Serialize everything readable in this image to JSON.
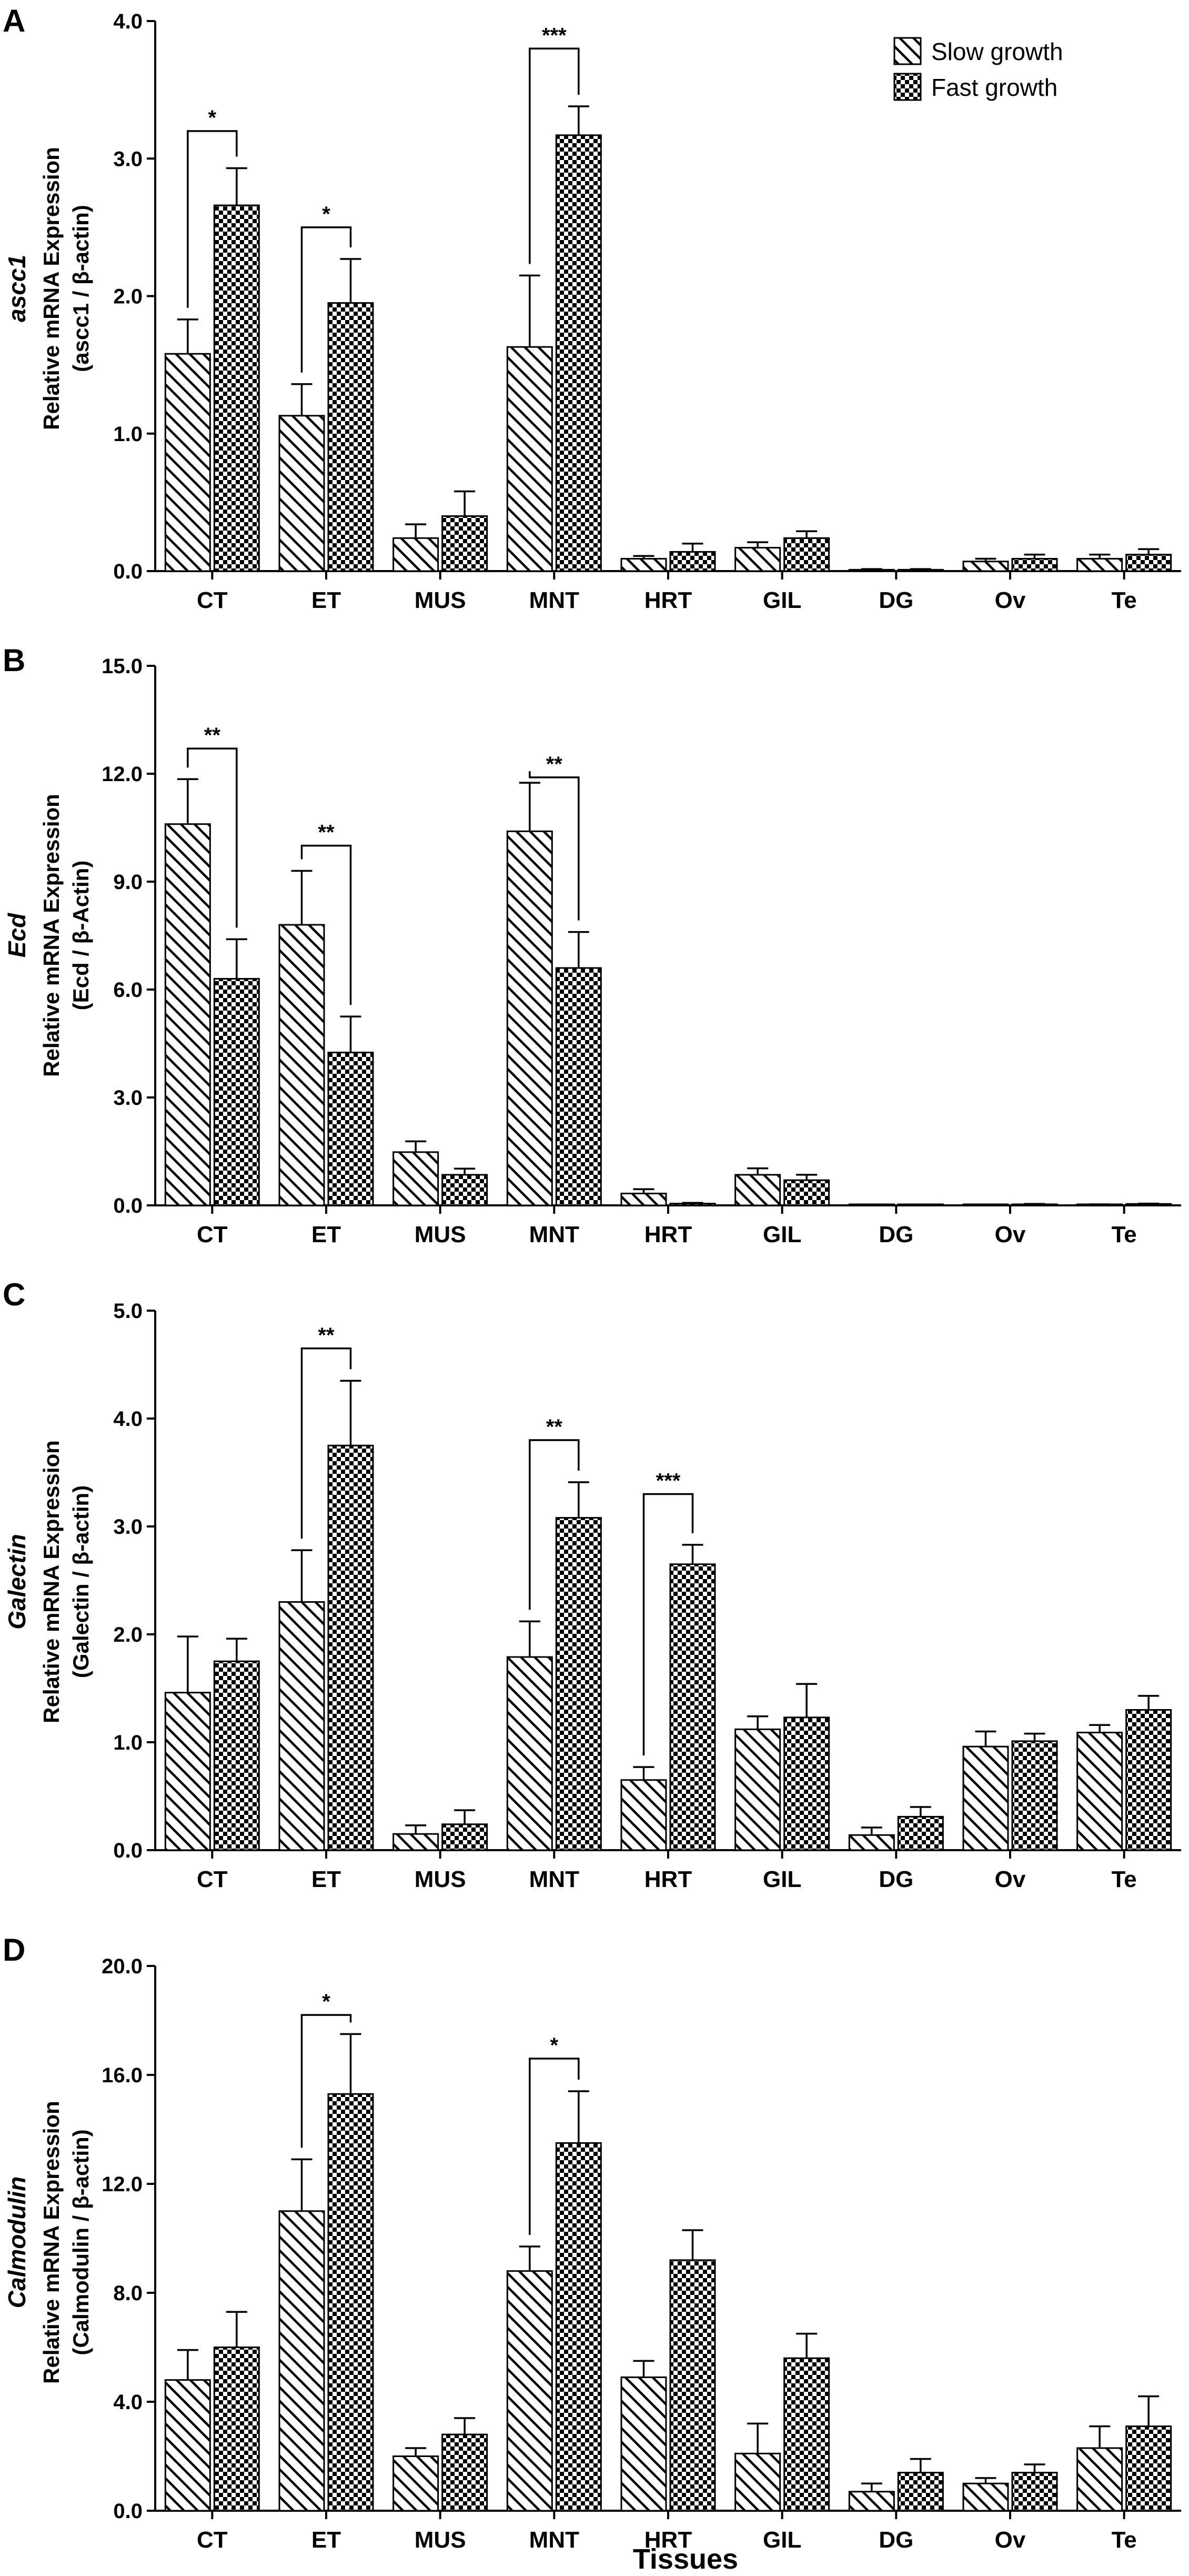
{
  "xlabel": "Tissues",
  "legend": [
    {
      "name": "Slow growth",
      "pattern": "hatch"
    },
    {
      "name": "Fast growth",
      "pattern": "check"
    }
  ],
  "colors": {
    "ink": "#000000",
    "background": "#ffffff"
  },
  "chart_data": [
    {
      "type": "bar",
      "panel": "A",
      "gene": "ascc1",
      "ylabel_line1": "Relative mRNA Expression",
      "ylabel_line2": "(ascc1 / β-actin)",
      "ylim": [
        0,
        4.0
      ],
      "yticks": [
        "0.0",
        "1.0",
        "2.0",
        "3.0",
        "4.0"
      ],
      "categories": [
        "CT",
        "ET",
        "MUS",
        "MNT",
        "HRT",
        "GIL",
        "DG",
        "Ov",
        "Te"
      ],
      "series": [
        {
          "name": "Slow growth",
          "values": [
            1.58,
            1.13,
            0.24,
            1.63,
            0.09,
            0.17,
            0.01,
            0.07,
            0.09
          ],
          "errors": [
            0.25,
            0.23,
            0.1,
            0.52,
            0.02,
            0.04,
            0.005,
            0.02,
            0.03
          ]
        },
        {
          "name": "Fast growth",
          "values": [
            2.66,
            1.95,
            0.4,
            3.17,
            0.14,
            0.24,
            0.01,
            0.09,
            0.12
          ],
          "errors": [
            0.27,
            0.32,
            0.18,
            0.21,
            0.06,
            0.05,
            0.005,
            0.03,
            0.04
          ]
        }
      ],
      "significance": [
        {
          "category": "CT",
          "label": "*",
          "level": 3.2
        },
        {
          "category": "ET",
          "label": "*",
          "level": 2.5
        },
        {
          "category": "MNT",
          "label": "***",
          "level": 3.8
        }
      ]
    },
    {
      "type": "bar",
      "panel": "B",
      "gene": "Ecd",
      "ylabel_line1": "Relative mRNA Expression",
      "ylabel_line2": "(Ecd / β-Actin)",
      "ylim": [
        0,
        15.0
      ],
      "yticks": [
        "0.0",
        "3.0",
        "6.0",
        "9.0",
        "12.0",
        "15.0"
      ],
      "categories": [
        "CT",
        "ET",
        "MUS",
        "MNT",
        "HRT",
        "GIL",
        "DG",
        "Ov",
        "Te"
      ],
      "series": [
        {
          "name": "Slow growth",
          "values": [
            10.6,
            7.8,
            1.48,
            10.4,
            0.33,
            0.85,
            0.01,
            0.01,
            0.02
          ],
          "errors": [
            1.25,
            1.5,
            0.3,
            1.35,
            0.12,
            0.18,
            0.005,
            0.005,
            0.01
          ]
        },
        {
          "name": "Fast growth",
          "values": [
            6.3,
            4.25,
            0.85,
            6.6,
            0.05,
            0.7,
            0.01,
            0.03,
            0.04
          ],
          "errors": [
            1.1,
            1.0,
            0.17,
            1.0,
            0.02,
            0.15,
            0.005,
            0.01,
            0.01
          ]
        }
      ],
      "significance": [
        {
          "category": "CT",
          "label": "**",
          "level": 12.7
        },
        {
          "category": "ET",
          "label": "**",
          "level": 10.0
        },
        {
          "category": "MNT",
          "label": "**",
          "level": 11.9
        }
      ]
    },
    {
      "type": "bar",
      "panel": "C",
      "gene": "Galectin",
      "ylabel_line1": "Relative mRNA Expression",
      "ylabel_line2": "(Galectin / β-actin)",
      "ylim": [
        0,
        5.0
      ],
      "yticks": [
        "0.0",
        "1.0",
        "2.0",
        "3.0",
        "4.0",
        "5.0"
      ],
      "categories": [
        "CT",
        "ET",
        "MUS",
        "MNT",
        "HRT",
        "GIL",
        "DG",
        "Ov",
        "Te"
      ],
      "series": [
        {
          "name": "Slow growth",
          "values": [
            1.46,
            2.3,
            0.15,
            1.79,
            0.65,
            1.12,
            0.14,
            0.96,
            1.09
          ],
          "errors": [
            0.52,
            0.48,
            0.08,
            0.33,
            0.12,
            0.12,
            0.07,
            0.14,
            0.07
          ]
        },
        {
          "name": "Fast growth",
          "values": [
            1.75,
            3.75,
            0.24,
            3.08,
            2.65,
            1.23,
            0.31,
            1.01,
            1.3
          ],
          "errors": [
            0.21,
            0.6,
            0.13,
            0.33,
            0.18,
            0.31,
            0.09,
            0.07,
            0.13
          ]
        }
      ],
      "significance": [
        {
          "category": "ET",
          "label": "**",
          "level": 4.65
        },
        {
          "category": "MNT",
          "label": "**",
          "level": 3.8
        },
        {
          "category": "HRT",
          "label": "***",
          "level": 3.3
        }
      ]
    },
    {
      "type": "bar",
      "panel": "D",
      "gene": "Calmodulin",
      "ylabel_line1": "Relative mRNA Expression",
      "ylabel_line2": "(Calmodulin / β-actin)",
      "ylim": [
        0,
        20.0
      ],
      "yticks": [
        "0.0",
        "4.0",
        "8.0",
        "12.0",
        "16.0",
        "20.0"
      ],
      "categories": [
        "CT",
        "ET",
        "MUS",
        "MNT",
        "HRT",
        "GIL",
        "DG",
        "Ov",
        "Te"
      ],
      "series": [
        {
          "name": "Slow growth",
          "values": [
            4.8,
            11.0,
            2.0,
            8.8,
            4.9,
            2.1,
            0.7,
            1.0,
            2.3
          ],
          "errors": [
            1.1,
            1.9,
            0.3,
            0.9,
            0.6,
            1.1,
            0.3,
            0.2,
            0.8
          ]
        },
        {
          "name": "Fast growth",
          "values": [
            6.0,
            15.3,
            2.8,
            13.5,
            9.2,
            5.6,
            1.4,
            1.4,
            3.1
          ],
          "errors": [
            1.3,
            2.2,
            0.6,
            1.9,
            1.1,
            0.9,
            0.5,
            0.3,
            1.1
          ]
        }
      ],
      "significance": [
        {
          "category": "ET",
          "label": "*",
          "level": 18.2
        },
        {
          "category": "MNT",
          "label": "*",
          "level": 16.6
        }
      ]
    }
  ]
}
